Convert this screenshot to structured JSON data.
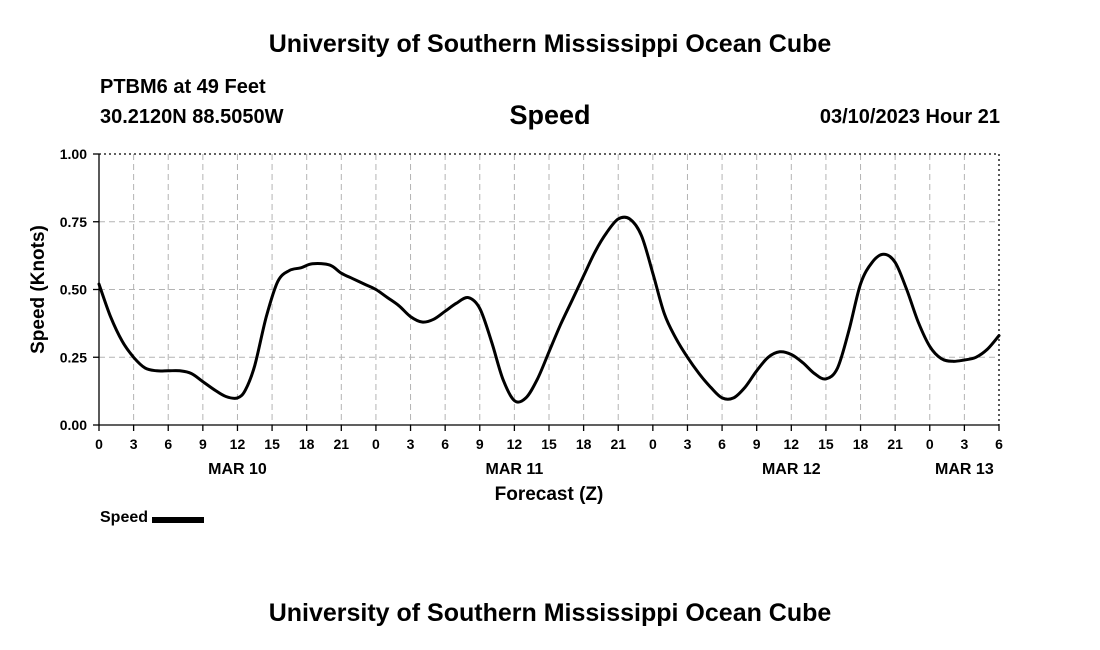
{
  "header": {
    "title": "University of Southern Mississippi Ocean Cube",
    "station": "PTBM6 at 49 Feet",
    "coordinates": "30.2120N  88.5050W",
    "chart_title": "Speed",
    "timestamp": "03/10/2023 Hour 21"
  },
  "footer": {
    "title": "University of Southern Mississippi Ocean Cube"
  },
  "legend": {
    "label": "Speed"
  },
  "chart_data": {
    "type": "line",
    "title": "Speed",
    "xlabel": "Forecast (Z)",
    "ylabel": "Speed (Knots)",
    "xlim": [
      0,
      78
    ],
    "ylim": [
      0,
      1
    ],
    "grid": true,
    "legend_position": "bottom-left",
    "y_ticks": [
      "0.00",
      "0.25",
      "0.50",
      "0.75",
      "1.00"
    ],
    "x_tick_labels": [
      "0",
      "3",
      "6",
      "9",
      "12",
      "15",
      "18",
      "21",
      "0",
      "3",
      "6",
      "9",
      "12",
      "15",
      "18",
      "21",
      "0",
      "3",
      "6",
      "9",
      "12",
      "15",
      "18",
      "21",
      "0",
      "3",
      "6"
    ],
    "day_labels": [
      {
        "label": "MAR 10",
        "hour": 12
      },
      {
        "label": "MAR 11",
        "hour": 36
      },
      {
        "label": "MAR 12",
        "hour": 60
      },
      {
        "label": "MAR 13",
        "hour": 75
      }
    ],
    "series": [
      {
        "name": "Speed",
        "color": "#000000",
        "x": [
          0,
          1,
          2,
          3,
          4,
          5,
          6,
          7,
          8,
          9,
          10,
          11,
          12,
          12.7,
          13.5,
          14.5,
          15.5,
          16.5,
          17.5,
          18.5,
          20,
          21,
          22,
          23,
          24,
          25,
          26,
          27,
          28,
          29,
          30,
          31,
          32,
          33,
          34,
          35,
          36,
          37,
          38,
          39,
          40,
          41,
          42,
          43,
          44,
          45,
          46,
          47,
          48,
          49,
          50,
          51,
          52,
          53,
          54,
          55,
          56,
          57,
          58,
          59,
          60,
          61,
          62,
          63,
          64,
          65,
          66,
          67,
          68,
          69,
          70,
          71,
          72,
          73,
          74,
          75,
          76,
          77,
          78
        ],
        "values": [
          0.52,
          0.4,
          0.31,
          0.25,
          0.21,
          0.2,
          0.2,
          0.2,
          0.19,
          0.16,
          0.13,
          0.105,
          0.1,
          0.13,
          0.22,
          0.4,
          0.53,
          0.57,
          0.58,
          0.595,
          0.59,
          0.56,
          0.54,
          0.52,
          0.5,
          0.47,
          0.44,
          0.4,
          0.38,
          0.39,
          0.42,
          0.45,
          0.47,
          0.43,
          0.31,
          0.17,
          0.09,
          0.1,
          0.17,
          0.27,
          0.37,
          0.46,
          0.55,
          0.64,
          0.71,
          0.76,
          0.76,
          0.7,
          0.56,
          0.41,
          0.32,
          0.25,
          0.19,
          0.14,
          0.1,
          0.1,
          0.14,
          0.2,
          0.25,
          0.27,
          0.26,
          0.23,
          0.19,
          0.17,
          0.21,
          0.35,
          0.52,
          0.6,
          0.63,
          0.6,
          0.5,
          0.38,
          0.29,
          0.245,
          0.235,
          0.24,
          0.25,
          0.28,
          0.33
        ]
      }
    ]
  }
}
